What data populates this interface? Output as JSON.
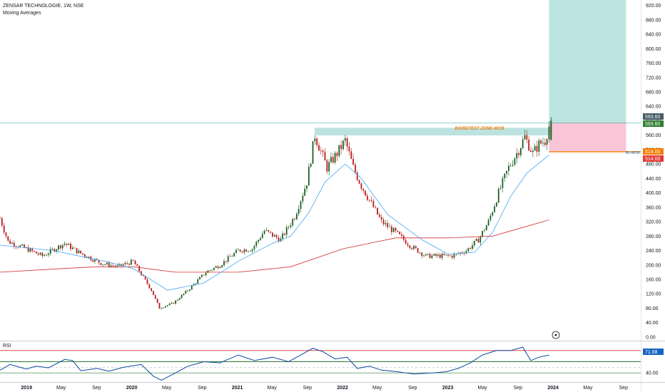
{
  "header": {
    "title": "ZENSAR TECHNOLOGIE, 1W, NSE",
    "indicator": "Moving Averages"
  },
  "rsi_panel": {
    "label": "RSI",
    "value": "71.68"
  },
  "annotations": {
    "zone_label": "BO/RETEST ZONE-WCB",
    "stop_label": "BL-WCB",
    "price_tag_top": "593.60",
    "price_tag_green": "593.60",
    "price_tag_orange": "514.00",
    "price_tag_red": "514.00"
  },
  "colors": {
    "up": "#26a69a",
    "down": "#ef5350",
    "candle_up": "#1b5e20",
    "candle_down": "#b71c1c",
    "ma_fast": "#42a5f5",
    "ma_slow": "#d32f2f",
    "zone": "#26a69a",
    "target": "#b2dfdb",
    "stop": "#f8bbd0",
    "orange": "#f57c00",
    "rsi": "#0d47a1"
  },
  "chart_data": {
    "type": "candlestick",
    "title": "ZENSAR TECHNOLOGIE, 1W, NSE",
    "y_ticks": [
      "920.00",
      "880.00",
      "840.00",
      "800.00",
      "760.00",
      "720.00",
      "680.00",
      "640.00",
      "600.00",
      "560.00",
      "520.00",
      "480.00",
      "440.00",
      "400.00",
      "360.00",
      "320.00",
      "280.00",
      "240.00",
      "200.00",
      "160.00",
      "120.00",
      "80.00",
      "40.00",
      "0.00"
    ],
    "x_ticks": [
      "2019",
      "May",
      "Sep",
      "2020",
      "May",
      "Sep",
      "2021",
      "May",
      "Sep",
      "2022",
      "May",
      "Sep",
      "2023",
      "May",
      "Sep",
      "2024",
      "May",
      "Sep"
    ],
    "ylim": [
      -10,
      935
    ],
    "x_range": [
      "2018-10-01",
      "2024-10-31"
    ],
    "price_path": [
      [
        "2018-10-01",
        330
      ],
      [
        "2018-10-29",
        265
      ],
      [
        "2018-12-31",
        245
      ],
      [
        "2019-02-25",
        225
      ],
      [
        "2019-05-13",
        260
      ],
      [
        "2019-07-01",
        235
      ],
      [
        "2019-09-16",
        205
      ],
      [
        "2019-11-11",
        195
      ],
      [
        "2020-01-06",
        210
      ],
      [
        "2020-03-09",
        130
      ],
      [
        "2020-04-06",
        80
      ],
      [
        "2020-05-25",
        95
      ],
      [
        "2020-07-20",
        135
      ],
      [
        "2020-09-14",
        180
      ],
      [
        "2020-11-02",
        200
      ],
      [
        "2021-01-04",
        240
      ],
      [
        "2021-02-22",
        245
      ],
      [
        "2021-04-05",
        295
      ],
      [
        "2021-05-31",
        270
      ],
      [
        "2021-07-19",
        335
      ],
      [
        "2021-08-30",
        430
      ],
      [
        "2021-09-27",
        560
      ],
      [
        "2021-11-08",
        470
      ],
      [
        "2021-12-13",
        510
      ],
      [
        "2022-01-10",
        545
      ],
      [
        "2022-02-07",
        470
      ],
      [
        "2022-03-07",
        420
      ],
      [
        "2022-04-04",
        380
      ],
      [
        "2022-05-16",
        320
      ],
      [
        "2022-07-04",
        290
      ],
      [
        "2022-08-29",
        250
      ],
      [
        "2022-10-17",
        225
      ],
      [
        "2022-12-05",
        225
      ],
      [
        "2023-01-16",
        225
      ],
      [
        "2023-03-06",
        240
      ],
      [
        "2023-04-17",
        270
      ],
      [
        "2023-05-22",
        320
      ],
      [
        "2023-06-26",
        400
      ],
      [
        "2023-07-31",
        470
      ],
      [
        "2023-09-04",
        520
      ],
      [
        "2023-09-25",
        555
      ],
      [
        "2023-10-23",
        510
      ],
      [
        "2023-11-13",
        535
      ],
      [
        "2023-12-04",
        545
      ],
      [
        "2023-12-18",
        585
      ]
    ],
    "ma_fast": [
      [
        "2018-10-01",
        255
      ],
      [
        "2019-04-01",
        240
      ],
      [
        "2019-10-01",
        210
      ],
      [
        "2020-01-06",
        190
      ],
      [
        "2020-05-04",
        130
      ],
      [
        "2020-09-07",
        150
      ],
      [
        "2021-01-04",
        210
      ],
      [
        "2021-05-03",
        260
      ],
      [
        "2021-07-05",
        280
      ],
      [
        "2021-09-06",
        345
      ],
      [
        "2021-11-01",
        430
      ],
      [
        "2022-01-10",
        480
      ],
      [
        "2022-03-07",
        440
      ],
      [
        "2022-06-06",
        340
      ],
      [
        "2022-10-03",
        270
      ],
      [
        "2023-01-02",
        230
      ],
      [
        "2023-04-03",
        235
      ],
      [
        "2023-06-05",
        290
      ],
      [
        "2023-08-07",
        390
      ],
      [
        "2023-10-02",
        455
      ],
      [
        "2023-12-18",
        505
      ]
    ],
    "ma_slow": [
      [
        "2018-10-01",
        180
      ],
      [
        "2019-05-06",
        190
      ],
      [
        "2019-09-02",
        195
      ],
      [
        "2020-01-06",
        195
      ],
      [
        "2020-06-01",
        180
      ],
      [
        "2021-01-04",
        180
      ],
      [
        "2021-07-05",
        195
      ],
      [
        "2022-01-03",
        245
      ],
      [
        "2022-07-04",
        275
      ],
      [
        "2023-01-02",
        275
      ],
      [
        "2023-06-05",
        280
      ],
      [
        "2023-12-18",
        325
      ]
    ],
    "levels": {
      "zone_top": 580,
      "zone_bottom": 560,
      "entry": 593.6,
      "stop": 514,
      "target_top": 935
    },
    "rsi": {
      "ylim": [
        25,
        95
      ],
      "upper": 80,
      "lower": 60,
      "mid": 50,
      "tick": "40.00",
      "path": [
        [
          "2018-10-01",
          45
        ],
        [
          "2018-11-05",
          55
        ],
        [
          "2018-12-31",
          47
        ],
        [
          "2019-02-04",
          52
        ],
        [
          "2019-03-18",
          49
        ],
        [
          "2019-05-13",
          64
        ],
        [
          "2019-06-10",
          62
        ],
        [
          "2019-07-08",
          44
        ],
        [
          "2019-09-02",
          48
        ],
        [
          "2019-10-14",
          43
        ],
        [
          "2019-12-02",
          50
        ],
        [
          "2020-02-03",
          55
        ],
        [
          "2020-03-16",
          34
        ],
        [
          "2020-04-13",
          27
        ],
        [
          "2020-06-01",
          40
        ],
        [
          "2020-07-13",
          52
        ],
        [
          "2020-09-07",
          60
        ],
        [
          "2020-11-02",
          58
        ],
        [
          "2021-01-04",
          72
        ],
        [
          "2021-03-01",
          62
        ],
        [
          "2021-05-03",
          68
        ],
        [
          "2021-06-28",
          60
        ],
        [
          "2021-08-09",
          72
        ],
        [
          "2021-09-20",
          84
        ],
        [
          "2021-10-25",
          78
        ],
        [
          "2021-12-06",
          65
        ],
        [
          "2022-01-17",
          68
        ],
        [
          "2022-02-21",
          48
        ],
        [
          "2022-04-04",
          52
        ],
        [
          "2022-05-16",
          45
        ],
        [
          "2022-07-11",
          42
        ],
        [
          "2022-09-05",
          38
        ],
        [
          "2022-11-07",
          40
        ],
        [
          "2022-12-26",
          42
        ],
        [
          "2023-02-06",
          48
        ],
        [
          "2023-03-20",
          58
        ],
        [
          "2023-05-01",
          72
        ],
        [
          "2023-06-19",
          80
        ],
        [
          "2023-08-07",
          80
        ],
        [
          "2023-09-18",
          86
        ],
        [
          "2023-10-16",
          62
        ],
        [
          "2023-11-13",
          68
        ],
        [
          "2023-12-18",
          72
        ]
      ]
    }
  }
}
